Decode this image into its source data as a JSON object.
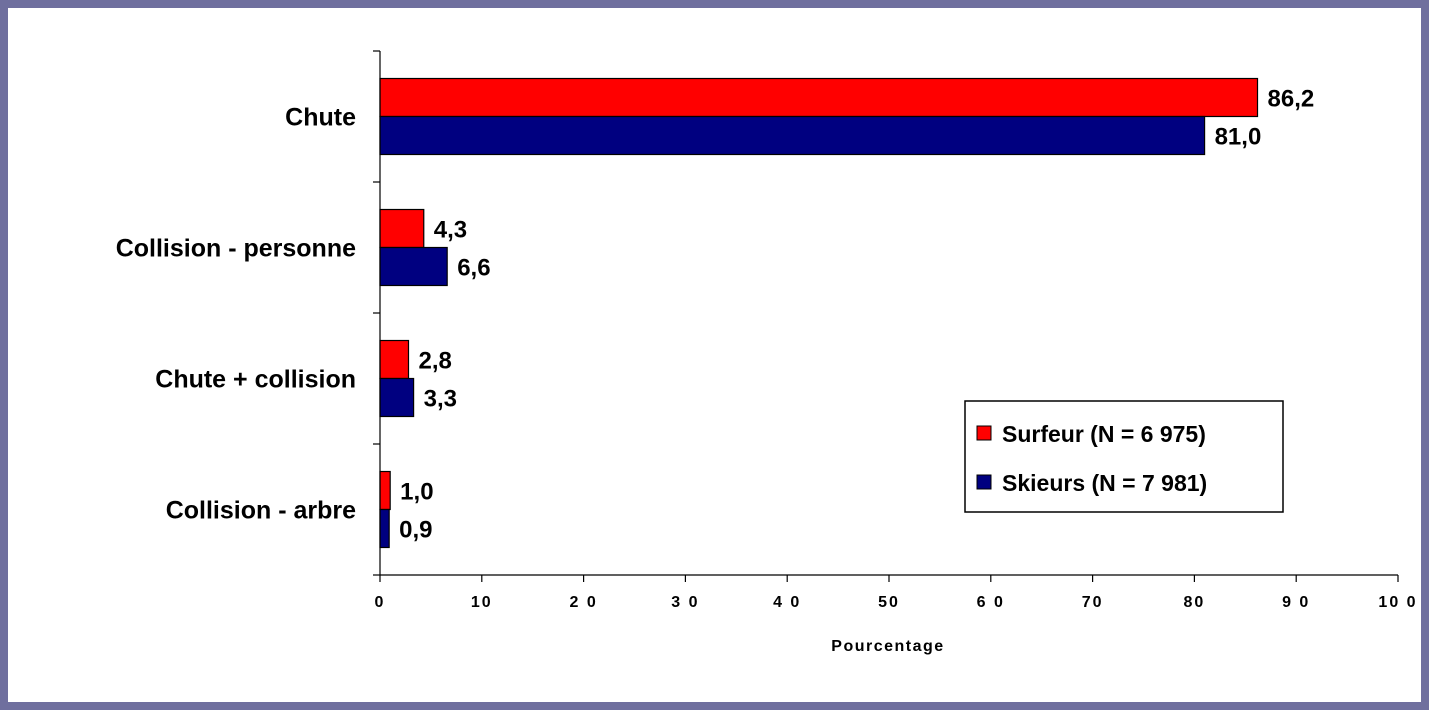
{
  "chart_data": {
    "type": "bar",
    "orientation": "horizontal",
    "categories": [
      "Chute",
      "Collision - personne",
      "Chute + collision",
      "Collision - arbre"
    ],
    "series": [
      {
        "name": "Surfeur (N = 6 975)",
        "values": [
          86.2,
          4.3,
          2.8,
          1.0
        ],
        "labels": [
          "86,2",
          "4,3",
          "2,8",
          "1,0"
        ],
        "color": "#ff0000"
      },
      {
        "name": "Skieurs (N = 7 981)",
        "values": [
          81.0,
          6.6,
          3.3,
          0.9
        ],
        "labels": [
          "81,0",
          "6,6",
          "3,3",
          "0,9"
        ],
        "color": "#000080"
      }
    ],
    "x_ticks": [
      "0",
      "10",
      "2 0",
      "3 0",
      "4 0",
      "50",
      "6 0",
      "70",
      "80",
      "9 0",
      "10 0"
    ],
    "xlabel": "Pourcentage",
    "xlim": [
      0,
      100
    ],
    "grid": false,
    "legend_position": "bottom-right"
  }
}
